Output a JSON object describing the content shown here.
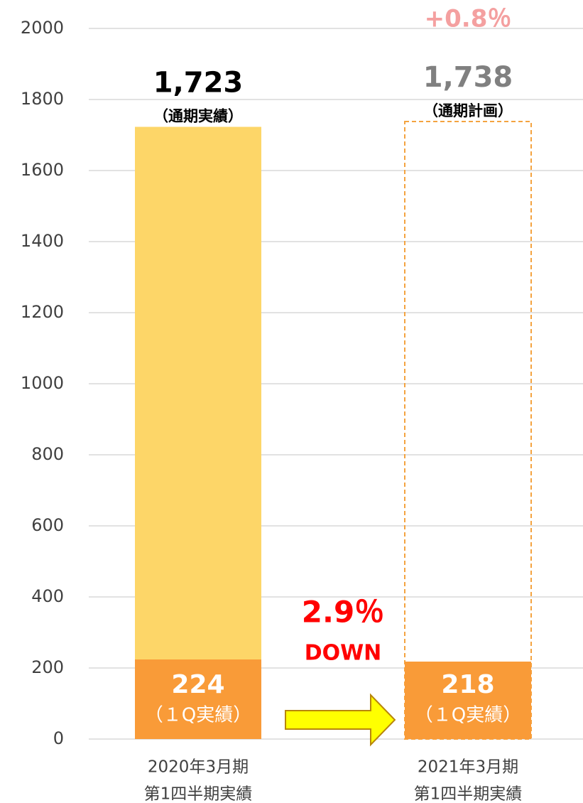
{
  "chart_data": {
    "type": "bar",
    "overlay": true,
    "categories": [
      [
        "2020年3月期",
        "第1四半期実績"
      ],
      [
        "2021年3月期",
        "第1四半期実績"
      ]
    ],
    "series": [
      {
        "values": [
          1723,
          1738
        ],
        "value_labels": [
          "1,723",
          "1,738"
        ],
        "sub_labels": [
          "（通期実績）",
          "（通期計画）"
        ],
        "color": "#FDD668",
        "styles": [
          "solid",
          "dashed"
        ],
        "label_colors": [
          "#000000",
          "#808080"
        ]
      },
      {
        "values": [
          224,
          218
        ],
        "value_labels": [
          "224",
          "218"
        ],
        "sub_labels": [
          "（１Q実績）",
          "（１Q実績）"
        ],
        "color": "#F99B38",
        "styles": [
          "solid",
          "solid"
        ],
        "label_colors": [
          "#ffffff",
          "#ffffff"
        ]
      }
    ],
    "annotations": [
      {
        "text": "+0.8％",
        "color": "#F4A0A0"
      },
      {
        "text": "2.9％",
        "color": "#FF0000"
      },
      {
        "text": "DOWN",
        "color": "#FF0000"
      }
    ],
    "ylim": [
      0,
      2000
    ],
    "yticks": [
      0,
      200,
      400,
      600,
      800,
      1000,
      1200,
      1400,
      1600,
      1800,
      2000
    ],
    "grid": true
  }
}
